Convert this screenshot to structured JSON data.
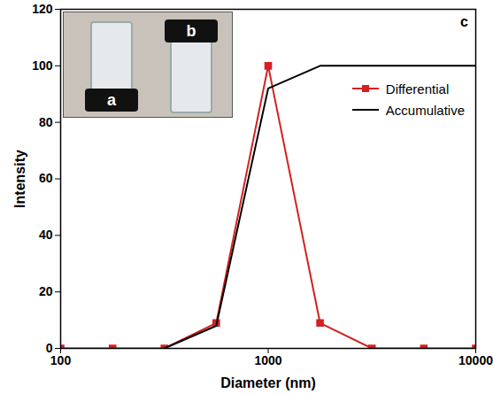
{
  "chart_data": {
    "type": "line",
    "x_label": "Diameter (nm)",
    "y_label": "Intensity",
    "annotations": [
      "c",
      "a",
      "b"
    ],
    "log": "x",
    "xlim": [
      100,
      10000
    ],
    "xticks": [
      100,
      1000,
      10000
    ],
    "ylim": [
      0,
      120
    ],
    "yticks": [
      0,
      20,
      40,
      60,
      80,
      100,
      120
    ],
    "grid": false,
    "legend": "upper right",
    "x": [
      100,
      178,
      316,
      562,
      1000,
      1778,
      3162,
      5623,
      10000
    ],
    "series": [
      {
        "name": "Differential",
        "color": "#d42020",
        "marker": "square",
        "line_style": "solid",
        "values": [
          0,
          0,
          0,
          9,
          100,
          9,
          0,
          0,
          0
        ]
      },
      {
        "name": "Accumulative",
        "color": "#000000",
        "marker": "none",
        "line_style": "solid",
        "values": [
          null,
          null,
          0,
          8,
          92,
          100,
          100,
          100,
          100
        ]
      }
    ]
  }
}
